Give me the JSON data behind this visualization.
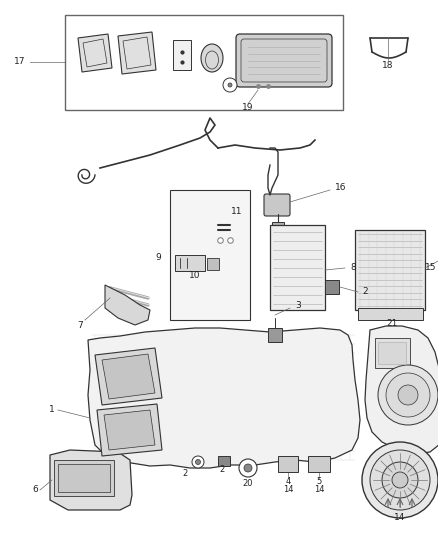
{
  "bg_color": "#ffffff",
  "line_color": "#444444",
  "label_color": "#222222",
  "leader_color": "#666666",
  "dark_color": "#333333",
  "gray_color": "#888888",
  "light_gray": "#cccccc",
  "mid_gray": "#aaaaaa"
}
